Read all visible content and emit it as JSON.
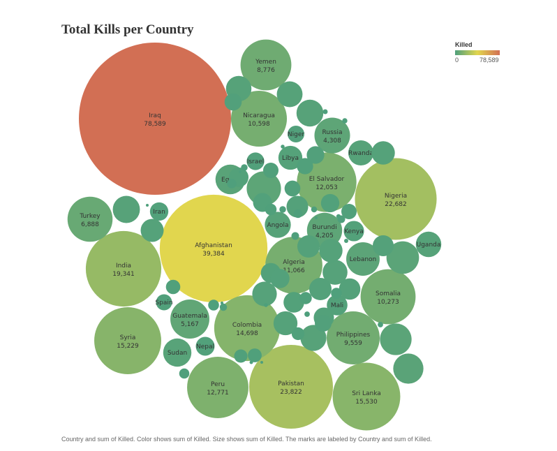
{
  "chart_data": {
    "type": "packed-bubble",
    "title": "Total Kills per Country",
    "legend": {
      "title": "Killed",
      "min_label": "0",
      "max_label": "78,589",
      "min": 0,
      "max": 78589,
      "placement": "top-right"
    },
    "color_scale": [
      "#4e9f7c",
      "#e1d64e",
      "#d26f54"
    ],
    "caption": "Country and sum of Killed.  Color shows sum of Killed.  Size shows sum of Killed.  The marks are labeled by Country and sum of Killed.",
    "labeled": [
      {
        "country": "Iraq",
        "value": 78589,
        "label": "78,589"
      },
      {
        "country": "Afghanistan",
        "value": 39384,
        "label": "39,384"
      },
      {
        "country": "Pakistan",
        "value": 23822,
        "label": "23,822"
      },
      {
        "country": "Nigeria",
        "value": 22682,
        "label": "22,682"
      },
      {
        "country": "India",
        "value": 19341,
        "label": "19,341"
      },
      {
        "country": "Sri Lanka",
        "value": 15530,
        "label": "15,530"
      },
      {
        "country": "Syria",
        "value": 15229,
        "label": "15,229"
      },
      {
        "country": "Colombia",
        "value": 14698,
        "label": "14,698"
      },
      {
        "country": "Peru",
        "value": 12771,
        "label": "12,771"
      },
      {
        "country": "El Salvador",
        "value": 12053,
        "label": "12,053"
      },
      {
        "country": "Algeria",
        "value": 11066,
        "label": "11,066"
      },
      {
        "country": "Nicaragua",
        "value": 10598,
        "label": "10,598"
      },
      {
        "country": "Somalia",
        "value": 10273,
        "label": "10,273"
      },
      {
        "country": "Philippines",
        "value": 9559,
        "label": "9,559"
      },
      {
        "country": "Yemen",
        "value": 8776,
        "label": "8,776"
      },
      {
        "country": "Turkey",
        "value": 6888,
        "label": "6,888"
      },
      {
        "country": "Guatemala",
        "value": 5167,
        "label": "5,167"
      },
      {
        "country": "Russia",
        "value": 4308,
        "label": "4,308"
      },
      {
        "country": "Burundi",
        "value": 4205,
        "label": "4,205"
      },
      {
        "country": "Lebanon",
        "value": 3800
      },
      {
        "country": "Egypt",
        "value": 3000
      },
      {
        "country": "Angola",
        "value": 2300
      },
      {
        "country": "Uganda",
        "value": 2200
      },
      {
        "country": "Sudan",
        "value": 2700
      },
      {
        "country": "Libya",
        "value": 1950
      },
      {
        "country": "Rwanda",
        "value": 2150
      },
      {
        "country": "Kenya",
        "value": 1400
      },
      {
        "country": "Mali",
        "value": 1450
      },
      {
        "country": "Israel",
        "value": 1050
      },
      {
        "country": "Niger",
        "value": 950
      },
      {
        "country": "Iran",
        "value": 1150
      },
      {
        "country": "Nepal",
        "value": 1200
      },
      {
        "country": "Spain",
        "value": 880
      }
    ],
    "unlabeled_values": [
      4000,
      3600,
      3400,
      3100,
      2500,
      2450,
      2250,
      2300,
      2200,
      2100,
      2050,
      1950,
      1850,
      1850,
      1800,
      1700,
      1700,
      1600,
      1550,
      1500,
      1450,
      1400,
      1350,
      1300,
      1250,
      1200,
      1150,
      1050,
      1000,
      950,
      900,
      850,
      800,
      800,
      700,
      650,
      600,
      550,
      500,
      450,
      400,
      400,
      350,
      300,
      250,
      200,
      200,
      180,
      150,
      150,
      120,
      100,
      100,
      90,
      80,
      70,
      60,
      50,
      50,
      40,
      30,
      30,
      25,
      20,
      15
    ]
  }
}
